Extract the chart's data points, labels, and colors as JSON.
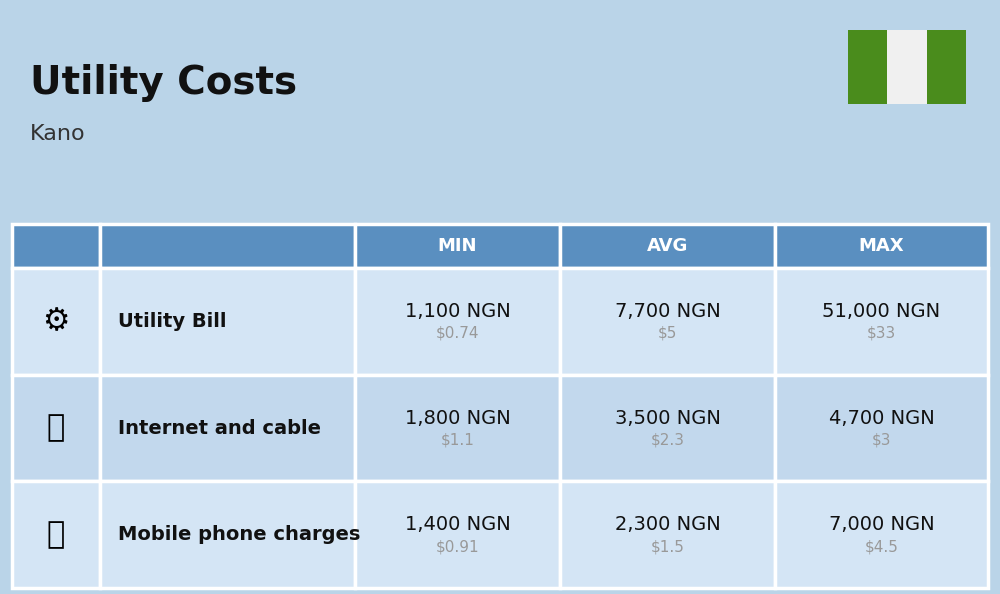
{
  "title": "Utility Costs",
  "subtitle": "Kano",
  "background_color": "#bad4e8",
  "header_bg_color": "#5a8fc0",
  "header_text_color": "#ffffff",
  "row_bg_color_1": "#d4e5f5",
  "row_bg_color_2": "#c2d8ed",
  "table_border_color": "#ffffff",
  "col_headers": [
    "MIN",
    "AVG",
    "MAX"
  ],
  "rows": [
    {
      "label": "Utility Bill",
      "min_ngn": "1,100 NGN",
      "min_usd": "$0.74",
      "avg_ngn": "7,700 NGN",
      "avg_usd": "$5",
      "max_ngn": "51,000 NGN",
      "max_usd": "$33"
    },
    {
      "label": "Internet and cable",
      "min_ngn": "1,800 NGN",
      "min_usd": "$1.1",
      "avg_ngn": "3,500 NGN",
      "avg_usd": "$2.3",
      "max_ngn": "4,700 NGN",
      "max_usd": "$3"
    },
    {
      "label": "Mobile phone charges",
      "min_ngn": "1,400 NGN",
      "min_usd": "$0.91",
      "avg_ngn": "2,300 NGN",
      "avg_usd": "$1.5",
      "max_ngn": "7,000 NGN",
      "max_usd": "$4.5"
    }
  ],
  "nigeria_flag_green": "#4a8c1c",
  "nigeria_flag_white": "#f0f0f0",
  "ngn_fontsize": 14,
  "usd_fontsize": 11,
  "usd_color": "#999999",
  "label_fontsize": 14,
  "header_fontsize": 13,
  "title_fontsize": 28,
  "subtitle_fontsize": 16
}
